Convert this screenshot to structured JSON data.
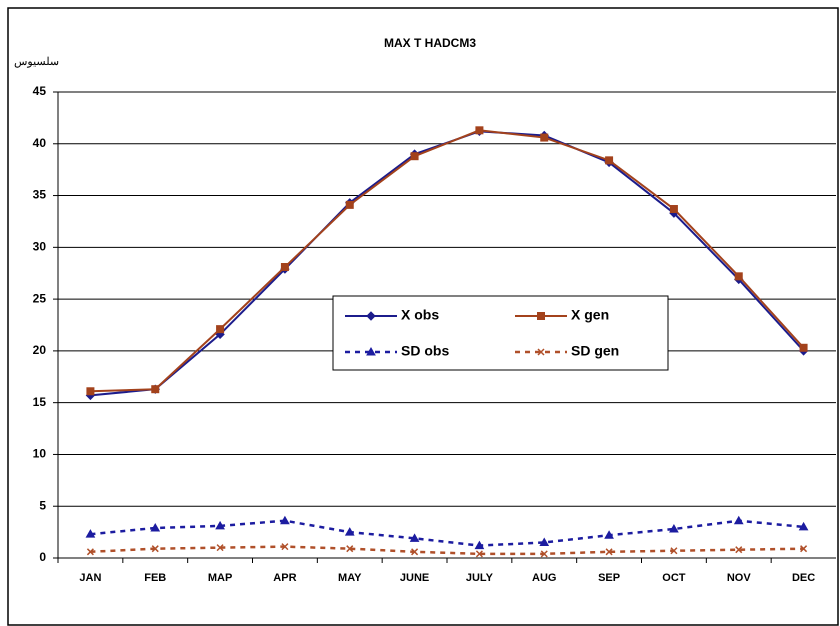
{
  "chart_data": {
    "type": "line",
    "title": "MAX T HADCM3",
    "y_label": "سلسیوس",
    "categories": [
      "JAN",
      "FEB",
      "MAP",
      "APR",
      "MAY",
      "JUNE",
      "JULY",
      "AUG",
      "SEP",
      "OCT",
      "NOV",
      "DEC"
    ],
    "series": [
      {
        "name": "X obs",
        "color": "#1c1c8c",
        "marker": "diamond",
        "dashed": false,
        "values": [
          15.7,
          16.3,
          21.6,
          27.9,
          34.3,
          39.0,
          41.2,
          40.8,
          38.2,
          33.3,
          26.9,
          20.0
        ]
      },
      {
        "name": "X gen",
        "color": "#a3421c",
        "marker": "square",
        "dashed": false,
        "values": [
          16.1,
          16.3,
          22.1,
          28.1,
          34.1,
          38.8,
          41.3,
          40.6,
          38.4,
          33.7,
          27.2,
          20.3
        ]
      },
      {
        "name": "SD obs",
        "color": "#1c1ca0",
        "marker": "triangle",
        "dashed": true,
        "values": [
          2.3,
          2.9,
          3.1,
          3.6,
          2.5,
          1.9,
          1.2,
          1.5,
          2.2,
          2.8,
          3.6,
          3.0
        ]
      },
      {
        "name": "SD gen",
        "color": "#b0502a",
        "marker": "x",
        "dashed": true,
        "values": [
          0.6,
          0.9,
          1.0,
          1.1,
          0.9,
          0.6,
          0.4,
          0.4,
          0.6,
          0.7,
          0.8,
          0.9
        ]
      }
    ],
    "ylim": [
      0,
      45
    ],
    "yticks": [
      0,
      5,
      10,
      15,
      20,
      25,
      30,
      35,
      40,
      45
    ],
    "grid": true
  }
}
